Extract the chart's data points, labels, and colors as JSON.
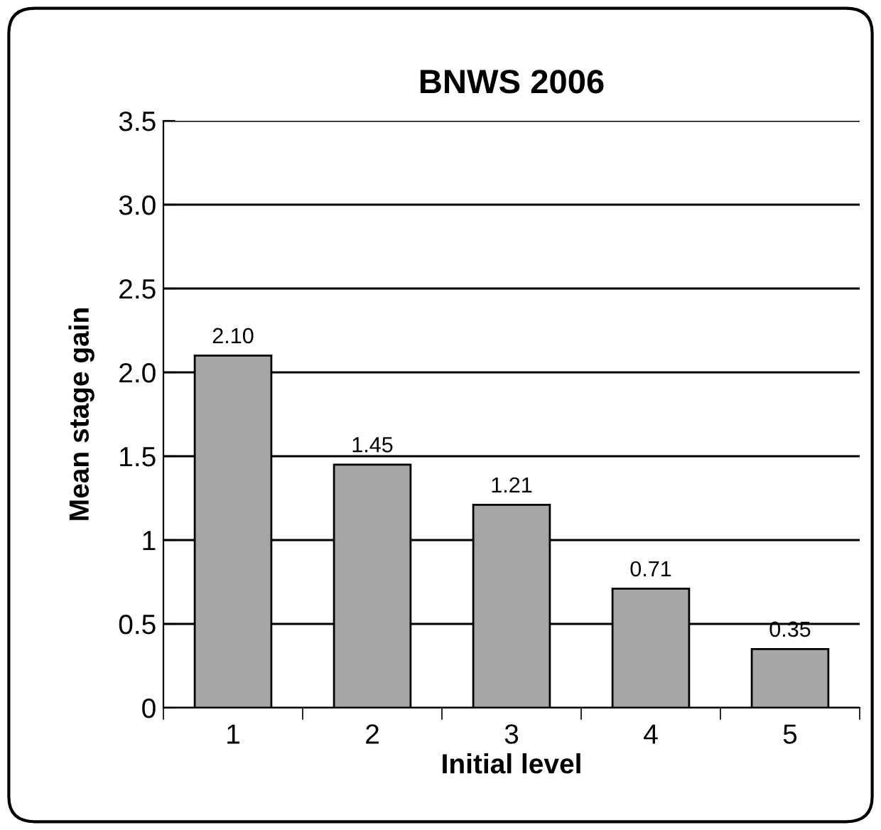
{
  "chart_data": {
    "type": "bar",
    "title": "BNWS 2006",
    "xlabel": "Initial level",
    "ylabel": "Mean stage gain",
    "categories": [
      "1",
      "2",
      "3",
      "4",
      "5"
    ],
    "values": [
      2.1,
      1.45,
      1.21,
      0.71,
      0.35
    ],
    "value_labels": [
      "2.10",
      "1.45",
      "1.21",
      "0.71",
      "0.35"
    ],
    "color": "#a6a6a6",
    "ylim": [
      0,
      3.5
    ],
    "yticks": [
      0,
      0.5,
      1,
      1.5,
      {
        "value": 2,
        "label": "2.0"
      },
      {
        "value": 2.5,
        "label": "2.5"
      },
      {
        "value": 3,
        "label": "3.0"
      },
      {
        "value": 3.5,
        "label": "3.5"
      }
    ],
    "grid": "y",
    "legend": false
  }
}
